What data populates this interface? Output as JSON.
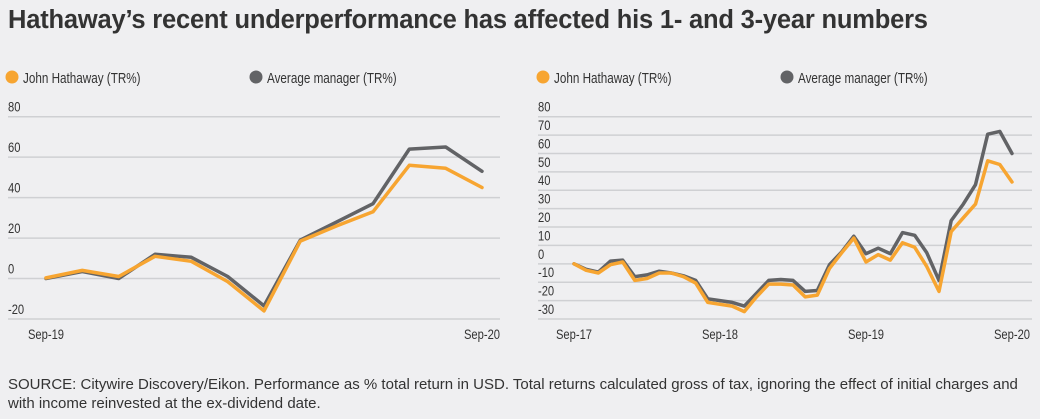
{
  "title": "Hathaway’s recent underperformance has affected his 1- and 3-year numbers",
  "footer": "SOURCE: Citywire Discovery/Eikon. Performance as % total return in USD. Total returns calculated gross of tax, ignoring the effect of initial charges and with income reinvested at the ex-dividend date.",
  "colors": {
    "hathaway": "#f7a531",
    "average": "#626366",
    "grid": "#cfd0d3",
    "background": "#efeff1"
  },
  "chart_data": [
    {
      "type": "line",
      "legend": "top-left",
      "grid": true,
      "ylim": [
        -20,
        80
      ],
      "yticks": [
        "80",
        "60",
        "40",
        "20",
        "0",
        "-20"
      ],
      "xtick_labels": [
        "Sep-19",
        "Sep-20"
      ],
      "series": [
        {
          "name": "John Hathaway (TR%)",
          "values": [
            0.3,
            4,
            1,
            11,
            8.5,
            -1.5,
            -16,
            18.5,
            26,
            33,
            56,
            54.5,
            45
          ]
        },
        {
          "name": "Average manager (TR%)",
          "values": [
            0,
            3.5,
            0,
            12,
            10.5,
            1,
            -13.5,
            19,
            28,
            37,
            64,
            65,
            53
          ]
        }
      ]
    },
    {
      "type": "line",
      "legend": "top-left",
      "grid": true,
      "ylim": [
        -30,
        80
      ],
      "yticks": [
        "80",
        "70",
        "60",
        "50",
        "40",
        "30",
        "20",
        "10",
        "0",
        "-10",
        "-20",
        "-30"
      ],
      "xtick_labels": [
        "Sep-17",
        "Sep-18",
        "Sep-19",
        "Sep-20"
      ],
      "series": [
        {
          "name": "John Hathaway (TR%)",
          "values": [
            0,
            -3.5,
            -5,
            -0.5,
            1,
            -9,
            -8,
            -5,
            -5,
            -7,
            -10.5,
            -21,
            -22,
            -23,
            -26,
            -18,
            -11,
            -11,
            -11.5,
            -18,
            -17,
            -2.5,
            6,
            14,
            1,
            5,
            2,
            11.5,
            9,
            -1.5,
            -15,
            17.5,
            25,
            32.5,
            56,
            54,
            44.5
          ]
        },
        {
          "name": "Average manager (TR%)",
          "values": [
            0,
            -3,
            -4.5,
            1.5,
            2,
            -7,
            -6,
            -4,
            -5,
            -6.5,
            -9,
            -19,
            -20,
            -21,
            -23,
            -16,
            -9,
            -8.5,
            -9,
            -15,
            -14.5,
            -0.5,
            6.5,
            15,
            5.5,
            8.5,
            5.5,
            17,
            15.5,
            6,
            -9,
            23.5,
            32.5,
            43,
            70.5,
            72,
            60
          ]
        }
      ]
    }
  ]
}
